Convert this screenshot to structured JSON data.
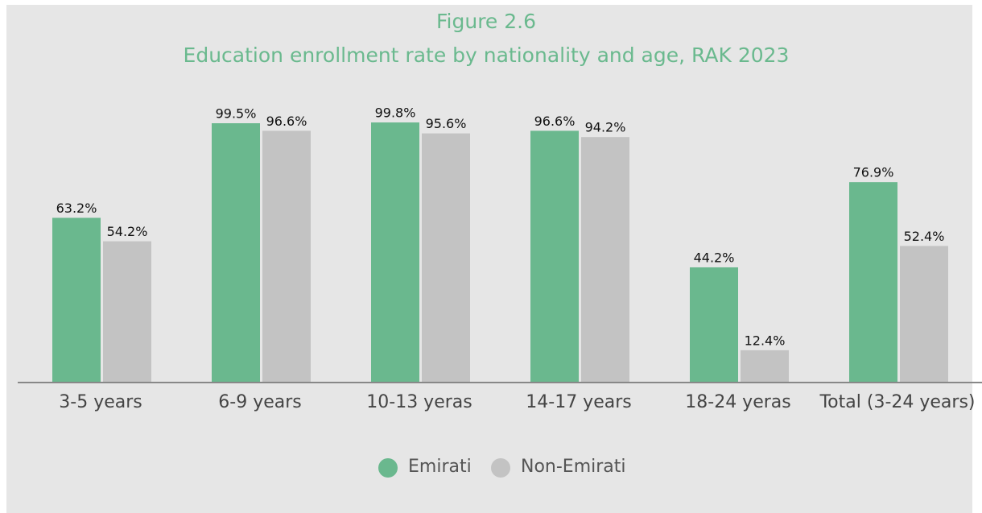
{
  "chart_data": {
    "type": "bar",
    "title": "Figure 2.6",
    "subtitle": "Education enrollment rate by nationality and age, RAK 2023",
    "categories": [
      "3-5 years",
      "6-9 years",
      "10-13 yeras",
      "14-17 years",
      "18-24 yeras",
      "Total (3-24 years)"
    ],
    "series": [
      {
        "name": "Emirati",
        "color": "#6ab88e",
        "values": [
          63.2,
          99.5,
          99.8,
          96.6,
          44.2,
          76.9
        ],
        "value_labels": [
          "63.2%",
          "99.5%",
          "99.8%",
          "96.6%",
          "44.2%",
          "76.9%"
        ]
      },
      {
        "name": "Non-Emirati",
        "color": "#c3c3c3",
        "values": [
          54.2,
          96.6,
          95.6,
          94.2,
          12.4,
          52.4
        ],
        "value_labels": [
          "54.2%",
          "96.6%",
          "95.6%",
          "94.2%",
          "12.4%",
          "52.4%"
        ]
      }
    ],
    "ylim": [
      0,
      100
    ]
  }
}
